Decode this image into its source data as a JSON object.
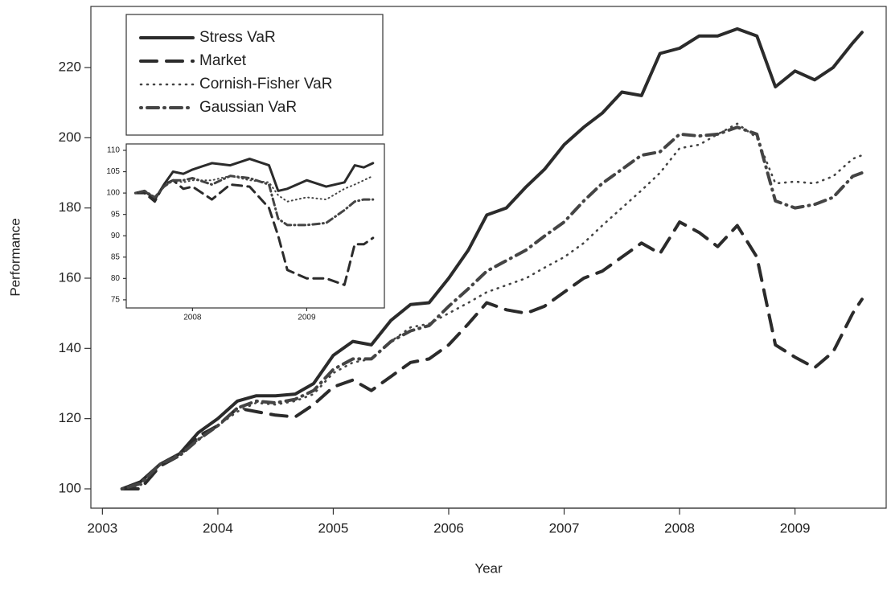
{
  "chart_data": [
    {
      "type": "line",
      "xlabel": "Year",
      "ylabel": "Performance",
      "xlim": [
        2002.9,
        2009.79
      ],
      "ylim": [
        94.5,
        237.4
      ],
      "xticks": [
        2003,
        2004,
        2005,
        2006,
        2007,
        2008,
        2009
      ],
      "yticks": [
        100,
        120,
        140,
        160,
        180,
        200,
        220
      ],
      "legend": "top-left",
      "x": [
        2003.17,
        2003.33,
        2003.5,
        2003.67,
        2003.83,
        2004.0,
        2004.17,
        2004.33,
        2004.5,
        2004.67,
        2004.83,
        2005.0,
        2005.17,
        2005.33,
        2005.5,
        2005.67,
        2005.83,
        2006.0,
        2006.17,
        2006.33,
        2006.5,
        2006.67,
        2006.83,
        2007.0,
        2007.17,
        2007.33,
        2007.5,
        2007.67,
        2007.83,
        2008.0,
        2008.17,
        2008.33,
        2008.5,
        2008.67,
        2008.83,
        2009.0,
        2009.17,
        2009.33,
        2009.5,
        2009.58
      ],
      "series": [
        {
          "name": "Stress VaR",
          "color": "#2b2b2b",
          "linestyle": "solid",
          "values": [
            100,
            102,
            107,
            110,
            116,
            120,
            125,
            126.5,
            126.5,
            127,
            130,
            138,
            142,
            141,
            148,
            152.5,
            153,
            160,
            168,
            178,
            180,
            186,
            191,
            198,
            203,
            207,
            213,
            212,
            224,
            225.5,
            229,
            229,
            231,
            229,
            214.5,
            219,
            216.5,
            220,
            227,
            230
          ]
        },
        {
          "name": "Market",
          "color": "#2b2b2b",
          "linestyle": "dashed",
          "values": [
            100,
            100,
            106.5,
            109.5,
            115,
            118,
            123,
            122,
            121,
            120.5,
            124,
            129,
            131,
            128,
            132,
            136,
            137,
            141,
            147,
            153,
            151,
            150,
            152,
            156,
            160,
            162,
            166,
            170,
            167,
            176,
            173,
            169,
            175,
            166,
            141,
            137.5,
            134.5,
            139,
            150,
            154
          ]
        },
        {
          "name": "Cornish-Fisher VaR",
          "color": "#444444",
          "linestyle": "dotted",
          "values": [
            100,
            101,
            107,
            110,
            114,
            118,
            122,
            124.5,
            124,
            125,
            127,
            133,
            136,
            137,
            142,
            146,
            147,
            150,
            153,
            156,
            158,
            160,
            163,
            166,
            170,
            175,
            180,
            185,
            190,
            197,
            198,
            201,
            204,
            200,
            187,
            187.5,
            187,
            189,
            194,
            195
          ]
        },
        {
          "name": "Gaussian VaR",
          "color": "#444444",
          "linestyle": "dotdash",
          "values": [
            100,
            101.5,
            107,
            109.5,
            114,
            118,
            123,
            125,
            124.5,
            125.5,
            128,
            134,
            137,
            137,
            142,
            145,
            146.5,
            152,
            157,
            162,
            165,
            168,
            172,
            176,
            182,
            187,
            191,
            195,
            196,
            201,
            200.5,
            201,
            203,
            201,
            182,
            180,
            181,
            183,
            189,
            190
          ]
        }
      ]
    },
    {
      "type": "line",
      "xlim": [
        2007.42,
        2009.68
      ],
      "ylim": [
        73.1,
        111.5
      ],
      "xticks": [
        2008,
        2009
      ],
      "yticks": [
        75,
        80,
        85,
        90,
        95,
        100,
        105,
        110
      ],
      "x": [
        2007.5,
        2007.58,
        2007.67,
        2007.75,
        2007.83,
        2007.92,
        2008.0,
        2008.17,
        2008.33,
        2008.5,
        2008.67,
        2008.75,
        2008.83,
        2009.0,
        2009.17,
        2009.33,
        2009.42,
        2009.5,
        2009.58
      ],
      "series": [
        {
          "color": "#2b2b2b",
          "linestyle": "solid",
          "values": [
            100,
            100.5,
            98.5,
            102,
            105,
            104.5,
            105.5,
            107,
            106.5,
            108,
            106.5,
            100.5,
            101,
            103,
            101.5,
            102.5,
            106.5,
            106,
            107
          ]
        },
        {
          "color": "#2b2b2b",
          "linestyle": "dashed",
          "values": [
            100,
            100,
            98,
            102,
            103,
            101,
            101.5,
            98.5,
            102,
            101.5,
            96.5,
            90,
            82,
            80,
            80,
            78.5,
            88,
            88,
            89.5
          ]
        },
        {
          "color": "#444444",
          "linestyle": "dotted",
          "values": [
            100,
            100.5,
            99,
            101.5,
            103,
            102.5,
            103,
            103,
            104,
            103,
            102.5,
            99.5,
            98,
            99,
            98.5,
            101,
            102,
            103,
            104
          ]
        },
        {
          "color": "#444444",
          "linestyle": "dotdash",
          "values": [
            100,
            100.5,
            99,
            101.5,
            103,
            103,
            103.5,
            102,
            104,
            103.5,
            102,
            94,
            92.5,
            92.5,
            93,
            96,
            98,
            98.5,
            98.5
          ]
        }
      ]
    }
  ]
}
